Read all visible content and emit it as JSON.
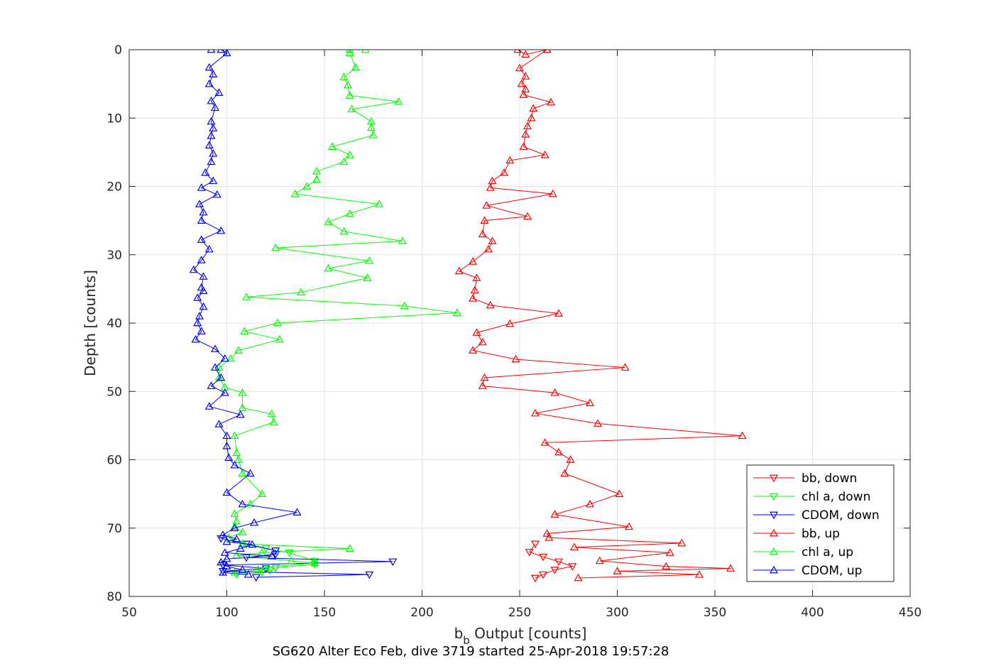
{
  "chart_data": {
    "type": "line",
    "xlabel_main": "b",
    "xlabel_sub": "b",
    "xlabel_rest": " Output [counts]",
    "ylabel": "Depth [counts]",
    "caption": "SG620 Alter Eco Feb, dive 3719 started 25-Apr-2018 19:57:28",
    "xlim": [
      50,
      450
    ],
    "ylim": [
      0,
      80
    ],
    "y_reversed": true,
    "grid": true,
    "legend_position": "bottom-right",
    "x_ticks": [
      "50",
      "100",
      "150",
      "200",
      "250",
      "300",
      "350",
      "400",
      "450"
    ],
    "y_ticks": [
      "0",
      "10",
      "20",
      "30",
      "40",
      "50",
      "60",
      "70",
      "80"
    ],
    "series": [
      {
        "name": "bb, down",
        "color": "#ff0000",
        "marker": "triangle-down",
        "points": [
          [
            258,
            72.3
          ],
          [
            255,
            73.5
          ],
          [
            262,
            74.2
          ],
          [
            270,
            74.9
          ],
          [
            277,
            75.6
          ],
          [
            268,
            76.1
          ],
          [
            262,
            76.8
          ],
          [
            258,
            77.3
          ]
        ]
      },
      {
        "name": "chl a, down",
        "color": "#00ff00",
        "marker": "triangle-down",
        "points": [
          [
            108,
            72.3
          ],
          [
            120,
            73.0
          ],
          [
            132,
            73.6
          ],
          [
            145,
            74.8
          ],
          [
            145,
            75.3
          ],
          [
            125,
            75.8
          ],
          [
            122,
            76.2
          ],
          [
            118,
            76.5
          ],
          [
            105,
            76.8
          ]
        ]
      },
      {
        "name": "CDOM, down",
        "color": "#0000ff",
        "marker": "triangle-down",
        "points": [
          [
            97,
            71.5
          ],
          [
            110,
            72.3
          ],
          [
            125,
            73.3
          ],
          [
            125,
            73.8
          ],
          [
            110,
            74.3
          ],
          [
            185,
            74.9
          ],
          [
            98,
            75.4
          ],
          [
            120,
            75.9
          ],
          [
            98,
            76.3
          ],
          [
            173,
            76.8
          ],
          [
            115,
            77.2
          ]
        ]
      },
      {
        "name": "bb, up",
        "color": "#ff0000",
        "marker": "triangle-up",
        "points": [
          [
            264,
            0
          ],
          [
            249,
            0
          ],
          [
            253,
            0.7
          ],
          [
            264,
            0
          ],
          [
            250,
            2.7
          ],
          [
            253,
            3.9
          ],
          [
            251,
            5.0
          ],
          [
            253,
            5.8
          ],
          [
            252,
            6.6
          ],
          [
            266,
            7.7
          ],
          [
            257,
            8.6
          ],
          [
            256,
            10.0
          ],
          [
            254,
            11.2
          ],
          [
            253,
            12.4
          ],
          [
            252,
            14.2
          ],
          [
            263,
            15.4
          ],
          [
            245,
            16.2
          ],
          [
            242,
            18.0
          ],
          [
            236,
            19.2
          ],
          [
            235,
            20.2
          ],
          [
            267,
            21.1
          ],
          [
            233,
            22.8
          ],
          [
            254,
            24.4
          ],
          [
            232,
            25.0
          ],
          [
            231,
            27.0
          ],
          [
            236,
            28.0
          ],
          [
            234,
            29.2
          ],
          [
            226,
            31.0
          ],
          [
            219,
            32.4
          ],
          [
            228,
            33.4
          ],
          [
            227,
            35.2
          ],
          [
            226,
            36.4
          ],
          [
            235,
            37.4
          ],
          [
            270,
            38.6
          ],
          [
            245,
            40.1
          ],
          [
            228,
            41.4
          ],
          [
            231,
            42.8
          ],
          [
            226,
            44.0
          ],
          [
            248,
            45.3
          ],
          [
            304,
            46.5
          ],
          [
            232,
            48.0
          ],
          [
            231,
            49.2
          ],
          [
            268,
            50.2
          ],
          [
            286,
            51.7
          ],
          [
            258,
            53.2
          ],
          [
            290,
            54.7
          ],
          [
            364,
            56.5
          ],
          [
            263,
            57.5
          ],
          [
            270,
            58.9
          ],
          [
            276,
            60.0
          ],
          [
            273,
            62.0
          ],
          [
            301,
            65.0
          ],
          [
            286,
            66.5
          ],
          [
            268,
            68.0
          ],
          [
            306,
            69.8
          ],
          [
            264,
            70.8
          ],
          [
            265,
            71.4
          ],
          [
            333,
            72.2
          ],
          [
            278,
            72.8
          ],
          [
            327,
            73.6
          ],
          [
            291,
            74.8
          ],
          [
            325,
            75.6
          ],
          [
            358,
            75.9
          ],
          [
            300,
            76.3
          ],
          [
            342,
            76.8
          ],
          [
            280,
            77.3
          ]
        ]
      },
      {
        "name": "chl a, up",
        "color": "#00ff00",
        "marker": "triangle-up",
        "points": [
          [
            171,
            0
          ],
          [
            163,
            0
          ],
          [
            163,
            0.5
          ],
          [
            166,
            2.6
          ],
          [
            160,
            4.0
          ],
          [
            162,
            5.2
          ],
          [
            163,
            6.7
          ],
          [
            188,
            7.6
          ],
          [
            164,
            8.7
          ],
          [
            174,
            10.5
          ],
          [
            174,
            11.4
          ],
          [
            175,
            12.5
          ],
          [
            154,
            14.2
          ],
          [
            163,
            15.4
          ],
          [
            160,
            16.4
          ],
          [
            146,
            17.8
          ],
          [
            146,
            19.0
          ],
          [
            141,
            20.0
          ],
          [
            135,
            21.1
          ],
          [
            178,
            22.6
          ],
          [
            163,
            24.0
          ],
          [
            152,
            25.2
          ],
          [
            160,
            26.6
          ],
          [
            190,
            28.0
          ],
          [
            125,
            29.0
          ],
          [
            173,
            30.9
          ],
          [
            152,
            32.0
          ],
          [
            172,
            33.4
          ],
          [
            138,
            35.5
          ],
          [
            110,
            36.2
          ],
          [
            191,
            37.5
          ],
          [
            218,
            38.5
          ],
          [
            126,
            40.0
          ],
          [
            109,
            41.2
          ],
          [
            127,
            42.4
          ],
          [
            106,
            44.0
          ],
          [
            102,
            45.2
          ],
          [
            96,
            46.5
          ],
          [
            96,
            48.0
          ],
          [
            99,
            49.4
          ],
          [
            108,
            50.2
          ],
          [
            108,
            52.4
          ],
          [
            123,
            53.3
          ],
          [
            124,
            54.5
          ],
          [
            104,
            56.5
          ],
          [
            105,
            59.0
          ],
          [
            106,
            60.0
          ],
          [
            108,
            62.0
          ],
          [
            118,
            65.0
          ],
          [
            112,
            66.5
          ],
          [
            104,
            67.9
          ],
          [
            105,
            69.0
          ],
          [
            104,
            69.8
          ],
          [
            108,
            70.6
          ],
          [
            101,
            71.4
          ],
          [
            108,
            72.3
          ],
          [
            163,
            73.0
          ],
          [
            118,
            73.6
          ],
          [
            105,
            74.0
          ],
          [
            133,
            74.8
          ],
          [
            145,
            75.1
          ],
          [
            120,
            75.7
          ],
          [
            116,
            76.1
          ],
          [
            104,
            76.5
          ]
        ]
      },
      {
        "name": "CDOM, up",
        "color": "#0000ff",
        "marker": "triangle-up",
        "points": [
          [
            92,
            0
          ],
          [
            97,
            0
          ],
          [
            100,
            0.5
          ],
          [
            91,
            2.6
          ],
          [
            93,
            3.6
          ],
          [
            91,
            5.0
          ],
          [
            96,
            6.3
          ],
          [
            92,
            7.5
          ],
          [
            94,
            8.5
          ],
          [
            92,
            10.5
          ],
          [
            93,
            11.5
          ],
          [
            92,
            12.6
          ],
          [
            91,
            14.0
          ],
          [
            93,
            15.2
          ],
          [
            92,
            16.4
          ],
          [
            89,
            18.0
          ],
          [
            93,
            19.2
          ],
          [
            87,
            20.2
          ],
          [
            95,
            21.2
          ],
          [
            86,
            22.6
          ],
          [
            88,
            23.8
          ],
          [
            87,
            25.0
          ],
          [
            97,
            26.5
          ],
          [
            87,
            27.8
          ],
          [
            91,
            29.2
          ],
          [
            87,
            30.8
          ],
          [
            83,
            32.2
          ],
          [
            88,
            33.2
          ],
          [
            87,
            34.8
          ],
          [
            88,
            35.3
          ],
          [
            85,
            36.3
          ],
          [
            88,
            37.6
          ],
          [
            86,
            39.0
          ],
          [
            85,
            40.0
          ],
          [
            87,
            41.2
          ],
          [
            84,
            42.4
          ],
          [
            94,
            43.8
          ],
          [
            99,
            45.2
          ],
          [
            94,
            46.5
          ],
          [
            97,
            48.0
          ],
          [
            92,
            49.2
          ],
          [
            99,
            50.2
          ],
          [
            91,
            52.2
          ],
          [
            107,
            53.4
          ],
          [
            96,
            54.8
          ],
          [
            100,
            56.5
          ],
          [
            100,
            58.0
          ],
          [
            101,
            59.7
          ],
          [
            104,
            60.8
          ],
          [
            112,
            62.0
          ],
          [
            100,
            64.8
          ],
          [
            108,
            66.5
          ],
          [
            136,
            67.7
          ],
          [
            114,
            69.2
          ],
          [
            104,
            70.0
          ],
          [
            98,
            71.0
          ],
          [
            105,
            71.6
          ],
          [
            100,
            72.0
          ],
          [
            113,
            72.4
          ],
          [
            107,
            73.0
          ],
          [
            99,
            73.6
          ],
          [
            123,
            74.1
          ],
          [
            100,
            74.5
          ],
          [
            97,
            75.0
          ],
          [
            100,
            75.6
          ],
          [
            108,
            76.1
          ],
          [
            98,
            76.5
          ],
          [
            111,
            76.8
          ]
        ]
      }
    ]
  }
}
